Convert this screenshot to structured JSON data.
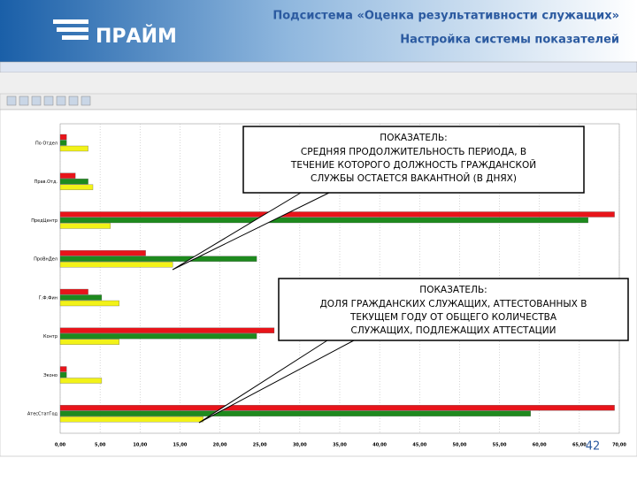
{
  "header": {
    "logo": "ПРАЙМ",
    "title": "Подсистема «Оценка результативности служащих»",
    "subtitle": "Настройка системы показателей",
    "page": "42"
  },
  "chart_data": {
    "type": "bar",
    "orientation": "horizontal",
    "categories": [
      "По Отдел",
      "Прав.Отд.",
      "ПредЦентр",
      "ПроВнДел",
      "Г.Ф.Фин",
      "Контр",
      "Эконо",
      "АтесСтатГод"
    ],
    "series": [
      {
        "color": "#e8141a",
        "values": [
          0.8,
          1.9,
          69.4,
          10.7,
          3.5,
          26.8,
          0.8,
          69.4
        ]
      },
      {
        "color": "#1e8a1e",
        "values": [
          0.8,
          3.5,
          66.1,
          24.6,
          5.2,
          24.6,
          0.8,
          58.9
        ]
      },
      {
        "color": "#f2f218",
        "values": [
          3.5,
          4.1,
          6.3,
          14.1,
          7.4,
          7.4,
          5.2,
          17.9
        ]
      }
    ],
    "xlim": [
      0,
      70
    ],
    "xticks": [
      {
        "value": 0,
        "label": "0,00"
      },
      {
        "value": 5,
        "label": "5,00"
      },
      {
        "value": 10,
        "label": "10,00"
      },
      {
        "value": 15,
        "label": "15,00"
      },
      {
        "value": 20,
        "label": "20,00"
      },
      {
        "value": 25,
        "label": "25,00"
      },
      {
        "value": 30,
        "label": "30,00"
      },
      {
        "value": 35,
        "label": "35,00"
      },
      {
        "value": 40,
        "label": "40,00"
      },
      {
        "value": 45,
        "label": "45,00"
      },
      {
        "value": 50,
        "label": "50,00"
      },
      {
        "value": 55,
        "label": "55,00"
      },
      {
        "value": 60,
        "label": "60,00"
      },
      {
        "value": 65,
        "label": "65,00"
      },
      {
        "value": 70,
        "label": "70,00"
      }
    ],
    "grid": true,
    "annotations": [
      {
        "label": "ПОКАЗАТЕЛЬ:",
        "lines": [
          "СРЕДНЯЯ ПРОДОЛЖИТЕЛЬНОСТЬ ПЕРИОДА, В",
          "ТЕЧЕНИЕ КОТОРОГО ДОЛЖНОСТЬ ГРАЖДАНСКОЙ",
          "СЛУЖБЫ ОСТАЕТСЯ ВАКАНТНОЙ (В ДНЯХ)"
        ]
      },
      {
        "label": "ПОКАЗАТЕЛЬ:",
        "lines": [
          "ДОЛЯ ГРАЖДАНСКИХ СЛУЖАЩИХ, АТТЕСТОВАННЫХ В",
          "ТЕКУЩЕМ ГОДУ ОТ ОБЩЕГО КОЛИЧЕСТВА",
          "СЛУЖАЩИХ, ПОДЛЕЖАЩИХ АТТЕСТАЦИИ"
        ]
      }
    ]
  }
}
